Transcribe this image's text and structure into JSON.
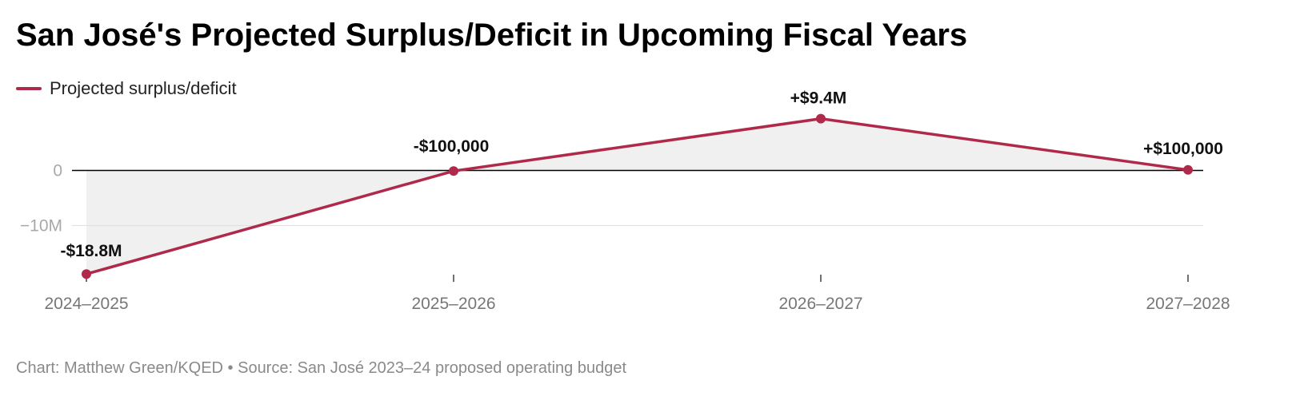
{
  "title": "San José's Projected Surplus/Deficit in Upcoming Fiscal Years",
  "footer": "Chart: Matthew Green/KQED • Source: San José 2023–24 proposed operating budget",
  "colors": {
    "series": "#b0294a",
    "area_fill": "#f0f0f0",
    "zero_line": "#000000",
    "gridline": "#e2e2e2",
    "tick_label": "#a9a9a9",
    "x_label": "#777777"
  },
  "chart_data": {
    "type": "line",
    "title": "San José's Projected Surplus/Deficit in Upcoming Fiscal Years",
    "xlabel": "",
    "ylabel": "",
    "categories": [
      "2024–2025",
      "2025–2026",
      "2026–2027",
      "2027–2028"
    ],
    "series": [
      {
        "name": "Projected surplus/deficit",
        "values": [
          -18800000,
          -100000,
          9400000,
          100000
        ],
        "data_labels": [
          "-$18.8M",
          "-$100,000",
          "+$9.4M",
          "+$100,000"
        ]
      }
    ],
    "ylim": [
      -19000000,
      10000000
    ],
    "y_ticks": [
      0,
      -10000000
    ],
    "y_tick_labels": [
      "0",
      "−10M"
    ],
    "grid": true,
    "area_fill_to_zero": true,
    "legend": "top-left"
  }
}
